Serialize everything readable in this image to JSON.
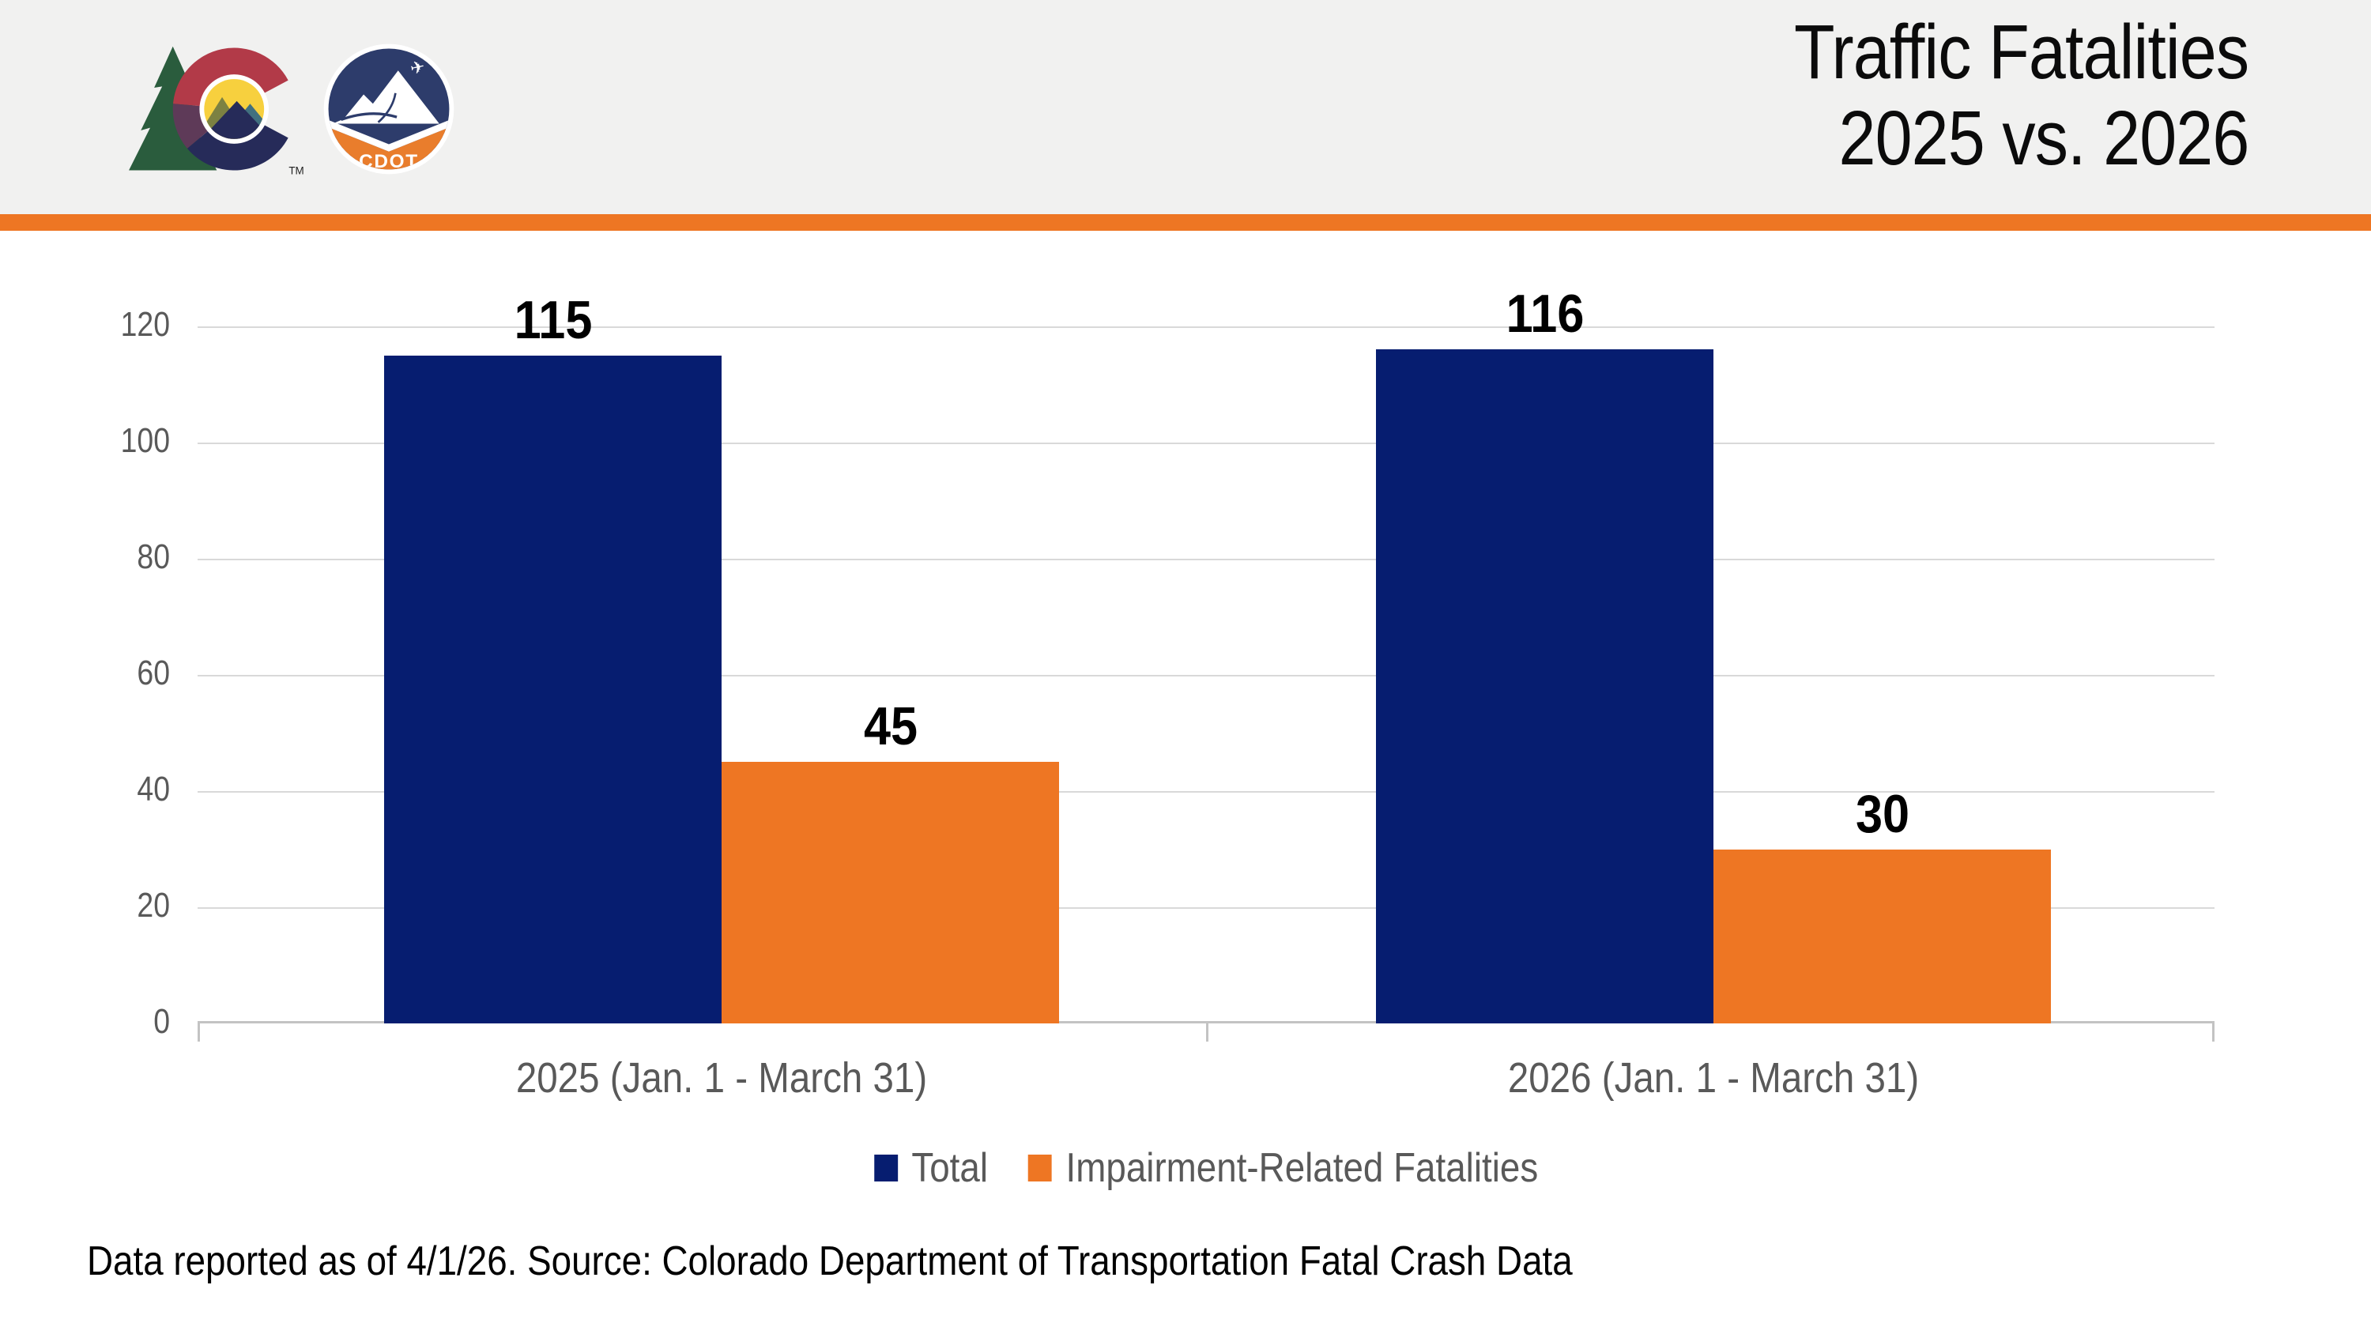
{
  "header": {
    "title_line1": "Traffic Fatalities",
    "title_line2": "2025 vs. 2026",
    "colorado_logo_tm": "TM",
    "cdot_logo_label": "CDOT"
  },
  "chart_data": {
    "type": "bar",
    "title": "Traffic Fatalities 2025 vs. 2026",
    "categories": [
      "2025 (Jan. 1 - March 31)",
      "2026 (Jan. 1 - March 31)"
    ],
    "series": [
      {
        "name": "Total",
        "values": [
          115,
          116
        ],
        "color": "#061d70"
      },
      {
        "name": "Impairment-Related Fatalities",
        "values": [
          45,
          30
        ],
        "color": "#ee7623"
      }
    ],
    "xlabel": "",
    "ylabel": "",
    "ylim": [
      0,
      120
    ],
    "yticks": [
      0,
      20,
      40,
      60,
      80,
      100,
      120
    ],
    "grid": true,
    "legend_position": "bottom",
    "data_labels": true
  },
  "footer": {
    "source_text": "Data reported as of 4/1/26. Source: Colorado Department of Transportation Fatal Crash Data"
  },
  "colors": {
    "accent_orange": "#ee7623",
    "navy": "#061d70",
    "header_bg": "#f1f1f0",
    "axis_text": "#595959",
    "gridline": "#d9d9d9"
  }
}
